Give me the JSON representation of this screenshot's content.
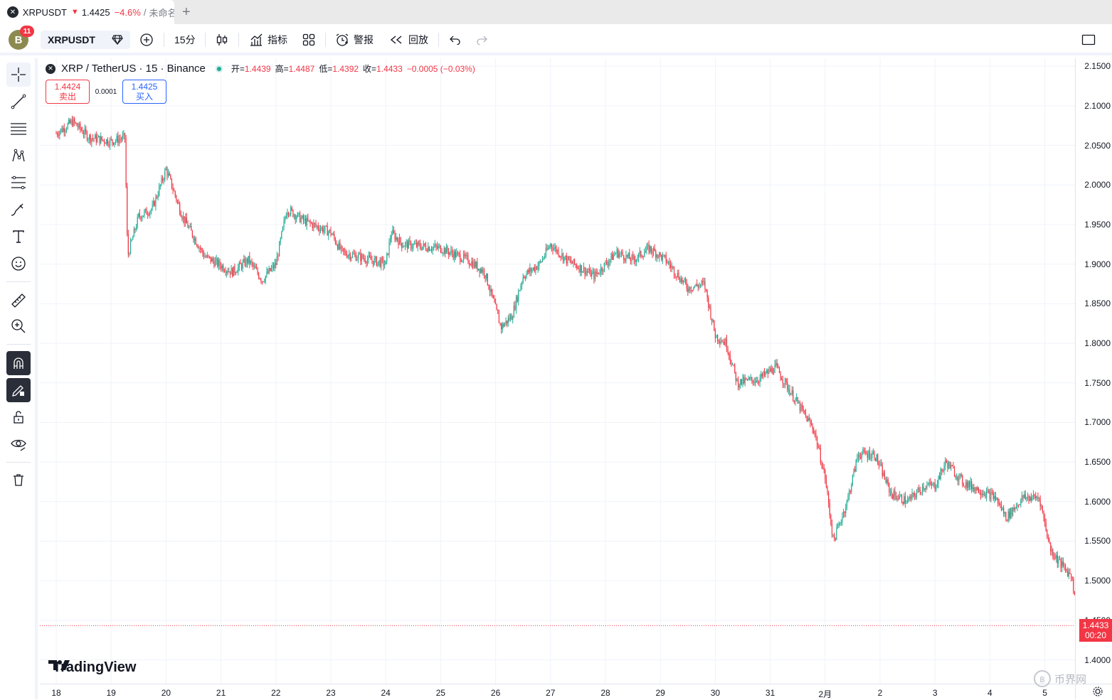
{
  "tab": {
    "symbol": "XRPUSDT",
    "price": "1.4425",
    "change": "−4.6%",
    "separator": "/",
    "layout": "未命名"
  },
  "toolbar": {
    "avatar_letter": "B",
    "badge": "11",
    "symbol": "XRPUSDT",
    "interval": "15分",
    "indicators": "指标",
    "alert": "警报",
    "replay": "回放"
  },
  "legend": {
    "title": "XRP / TetherUS · 15 · Binance",
    "open_label": "开=",
    "open": "1.4439",
    "high_label": "高=",
    "high": "1.4487",
    "low_label": "低=",
    "low": "1.4392",
    "close_label": "收=",
    "close": "1.4433",
    "change": "−0.0005 (−0.03%)"
  },
  "trade": {
    "sell_price": "1.4424",
    "sell_label": "卖出",
    "spread": "0.0001",
    "buy_price": "1.4425",
    "buy_label": "买入"
  },
  "watermark": "TradingView",
  "site_mark": "币界网",
  "last_price": {
    "price": "1.4433",
    "countdown": "00:20"
  },
  "colors": {
    "up": "#22ab94",
    "down": "#f23645",
    "accent": "#2962ff"
  },
  "chart_data": {
    "type": "candlestick",
    "title": "XRP / TetherUS · 15 · Binance",
    "ylim": [
      1.37,
      2.16
    ],
    "y_ticks": [
      "2.1500",
      "2.1000",
      "2.0500",
      "2.0000",
      "1.9500",
      "1.9000",
      "1.8500",
      "1.8000",
      "1.7500",
      "1.7000",
      "1.6500",
      "1.6000",
      "1.5500",
      "1.5000",
      "1.4500",
      "1.4000"
    ],
    "x_ticks": [
      "18",
      "19",
      "20",
      "21",
      "22",
      "23",
      "24",
      "25",
      "26",
      "27",
      "28",
      "29",
      "30",
      "31",
      "2月",
      "2",
      "3",
      "4",
      "5"
    ],
    "grid": true,
    "price_path": [
      [
        0.0,
        2.065
      ],
      [
        0.3,
        2.08
      ],
      [
        0.6,
        2.06
      ],
      [
        1.0,
        2.055
      ],
      [
        1.25,
        2.06
      ],
      [
        1.3,
        1.91
      ],
      [
        1.5,
        1.96
      ],
      [
        1.75,
        1.97
      ],
      [
        2.0,
        2.02
      ],
      [
        2.3,
        1.96
      ],
      [
        2.7,
        1.91
      ],
      [
        3.2,
        1.89
      ],
      [
        3.5,
        1.905
      ],
      [
        3.75,
        1.88
      ],
      [
        4.0,
        1.9
      ],
      [
        4.2,
        1.97
      ],
      [
        4.5,
        1.955
      ],
      [
        5.0,
        1.94
      ],
      [
        5.2,
        1.915
      ],
      [
        6.0,
        1.9
      ],
      [
        6.1,
        1.94
      ],
      [
        6.3,
        1.925
      ],
      [
        7.0,
        1.92
      ],
      [
        7.5,
        1.905
      ],
      [
        7.8,
        1.89
      ],
      [
        8.1,
        1.82
      ],
      [
        8.3,
        1.835
      ],
      [
        8.5,
        1.885
      ],
      [
        8.8,
        1.9
      ],
      [
        9.0,
        1.925
      ],
      [
        9.3,
        1.905
      ],
      [
        9.8,
        1.885
      ],
      [
        10.2,
        1.915
      ],
      [
        10.5,
        1.905
      ],
      [
        10.8,
        1.92
      ],
      [
        11.1,
        1.905
      ],
      [
        11.5,
        1.87
      ],
      [
        11.8,
        1.875
      ],
      [
        12.0,
        1.81
      ],
      [
        12.2,
        1.8
      ],
      [
        12.4,
        1.75
      ],
      [
        12.8,
        1.755
      ],
      [
        13.1,
        1.77
      ],
      [
        13.4,
        1.735
      ],
      [
        13.8,
        1.69
      ],
      [
        14.0,
        1.63
      ],
      [
        14.15,
        1.55
      ],
      [
        14.4,
        1.6
      ],
      [
        14.6,
        1.66
      ],
      [
        14.9,
        1.66
      ],
      [
        15.2,
        1.61
      ],
      [
        15.5,
        1.6
      ],
      [
        15.8,
        1.62
      ],
      [
        16.0,
        1.62
      ],
      [
        16.2,
        1.65
      ],
      [
        16.5,
        1.625
      ],
      [
        16.8,
        1.615
      ],
      [
        17.1,
        1.605
      ],
      [
        17.3,
        1.58
      ],
      [
        17.6,
        1.605
      ],
      [
        17.9,
        1.605
      ],
      [
        18.1,
        1.54
      ],
      [
        18.3,
        1.52
      ],
      [
        18.5,
        1.505
      ],
      [
        18.6,
        1.4433
      ]
    ]
  }
}
